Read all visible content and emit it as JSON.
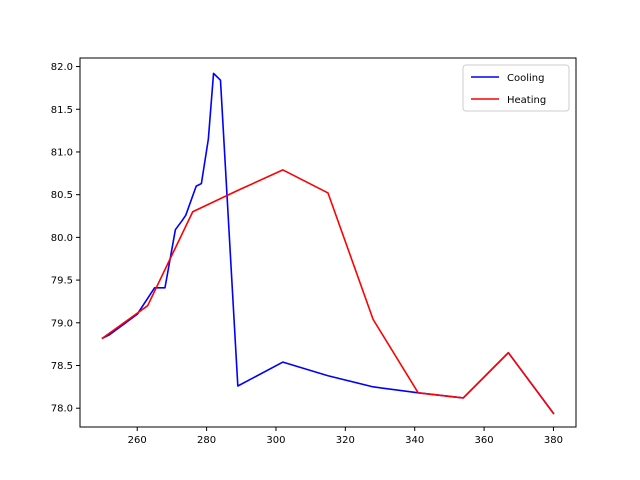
{
  "chart_data": {
    "type": "line",
    "title": "",
    "xlabel": "",
    "ylabel": "",
    "xlim": [
      243.5,
      386.5
    ],
    "ylim": [
      77.78,
      82.1
    ],
    "xticks": [
      260,
      280,
      300,
      320,
      340,
      360,
      380
    ],
    "yticks": [
      78.0,
      78.5,
      79.0,
      79.5,
      80.0,
      80.5,
      81.0,
      81.5,
      82.0
    ],
    "grid": false,
    "legend": {
      "location": "top-right"
    },
    "series": [
      {
        "name": "Cooling",
        "color": "#0000ff",
        "x": [
          250,
          252,
          260,
          265,
          268,
          271,
          273,
          274,
          277,
          278.5,
          280.5,
          282,
          284,
          289,
          302,
          315,
          328,
          341,
          354,
          367,
          380
        ],
        "y": [
          78.82,
          78.86,
          79.1,
          79.41,
          79.41,
          80.09,
          80.2,
          80.26,
          80.6,
          80.63,
          81.15,
          81.92,
          81.84,
          78.26,
          78.54,
          78.38,
          78.25,
          78.18,
          78.12,
          78.65,
          77.94
        ]
      },
      {
        "name": "Heating",
        "color": "#ff0000",
        "x": [
          250,
          263,
          276,
          289,
          302,
          315,
          328,
          341,
          354,
          367,
          380
        ],
        "y": [
          78.82,
          79.2,
          80.3,
          80.55,
          80.79,
          80.52,
          79.04,
          78.18,
          78.12,
          78.65,
          77.94
        ]
      }
    ]
  }
}
